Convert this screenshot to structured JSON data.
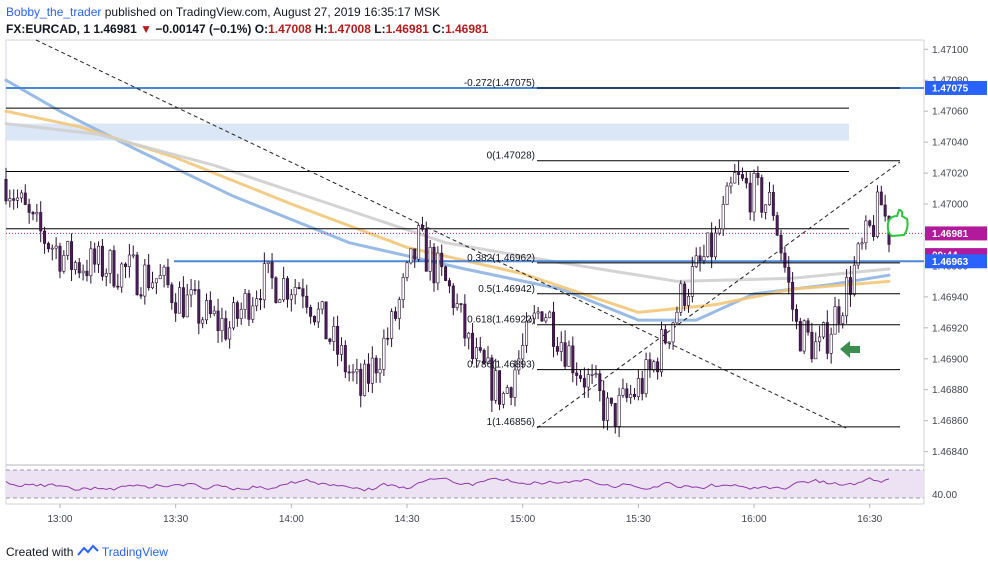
{
  "header": {
    "author": "Bobby_the_trader",
    "published_text": "published on TradingView.com, August 27, 2019 16:35:17 MSK",
    "symbol": "FX:EURCAD, 1",
    "last": "1.46981",
    "direction_symbol": "▼",
    "change": "−0.00147 (−0.1%)",
    "o_label": "O:",
    "o_value": "1.47008",
    "h_label": "H:",
    "h_value": "1.47008",
    "l_label": "L:",
    "l_value": "1.46981",
    "c_label": "C:",
    "c_value": "1.46981"
  },
  "footer": {
    "created_with": "Created with",
    "brand": "TradingView"
  },
  "colors": {
    "up_candle": "#ffffff",
    "down_candle": "#4a1d59",
    "wick": "#2a0f33",
    "ma_blue": "#8eb4e3",
    "ma_orange": "#f2c87a",
    "ma_grey": "#cfcfcf",
    "horizontal_blue": "#4c86d6",
    "zone_fill": "#dbe6f7",
    "rsi_line": "#8e3aa8",
    "rsi_band": "#ede2f4",
    "price_badge": "#b21a9c",
    "level_badge": "#2962ff",
    "arrow_green": "#3d8c4f",
    "thumb_green": "#2ac43e"
  },
  "chart_data": {
    "type": "candlestick",
    "symbol": "FX:EURCAD",
    "interval": "1",
    "price_axis_ticks": [
      "1.47100",
      "1.47080",
      "1.47060",
      "1.47040",
      "1.47020",
      "1.47000",
      "1.46980",
      "1.46960",
      "1.46940",
      "1.46920",
      "1.46900",
      "1.46880",
      "1.46860",
      "1.46840"
    ],
    "time_axis_ticks": [
      "13:00",
      "13:30",
      "14:00",
      "14:30",
      "15:00",
      "15:30",
      "16:00",
      "16:30"
    ],
    "ylim": [
      1.46832,
      1.47106
    ],
    "price_axis_labels": [
      {
        "text": "1.47075",
        "price": 1.47075,
        "color": "#2962ff"
      },
      {
        "text": "1.46981",
        "price": 1.46981,
        "color": "#b21a9c"
      },
      {
        "text": "00:44",
        "price": 1.46967,
        "color": "#b21a9c"
      },
      {
        "text": "1.46963",
        "price": 1.46963,
        "color": "#2962ff"
      }
    ],
    "fibonacci": [
      {
        "label": "-0.272(1.47075)",
        "price": 1.47075
      },
      {
        "label": "0(1.47028)",
        "price": 1.47028
      },
      {
        "label": "0.382(1.46962)",
        "price": 1.46962
      },
      {
        "label": "0.5(1.46942)",
        "price": 1.46942
      },
      {
        "label": "0.618(1.46922)",
        "price": 1.46922
      },
      {
        "label": "0.786(1.46893)",
        "price": 1.46893
      },
      {
        "label": "1(1.46856)",
        "price": 1.46856
      }
    ],
    "horizontal_lines": [
      {
        "price": 1.47075,
        "color": "#4c86d6"
      },
      {
        "price": 1.46963,
        "color": "#4c86d6"
      },
      {
        "price": 1.47062,
        "color": "#000000"
      },
      {
        "price": 1.47021,
        "color": "#000000"
      },
      {
        "price": 1.46984,
        "color": "#000000"
      }
    ],
    "zone": {
      "price_top": 1.47052,
      "price_bottom": 1.47041
    },
    "rsi": {
      "label": "40.00",
      "level": 40.0
    }
  }
}
